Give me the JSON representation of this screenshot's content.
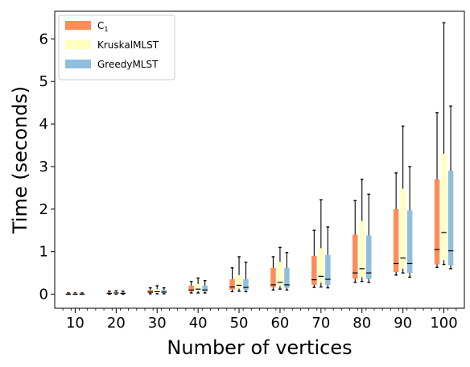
{
  "chart_data": {
    "type": "box",
    "xlabel": "Number of vertices",
    "ylabel": "Time (seconds)",
    "ylim": [
      -0.33,
      6.65
    ],
    "yticks": [
      0,
      1,
      2,
      3,
      4,
      5,
      6
    ],
    "categories": [
      "10",
      "20",
      "30",
      "40",
      "50",
      "60",
      "70",
      "80",
      "90",
      "100"
    ],
    "legend": {
      "position": "top-left",
      "entries": [
        {
          "label": "C",
          "subscript": "1"
        },
        {
          "label": "KruskalMLST",
          "subscript": ""
        },
        {
          "label": "GreedyMLST",
          "subscript": ""
        }
      ]
    },
    "series": [
      {
        "name": "C1",
        "color": "#fc8d59",
        "boxes": [
          {
            "min": 0.0,
            "q1": 0.0,
            "median": 0.0,
            "q3": 0.02,
            "max": 0.03
          },
          {
            "min": 0.0,
            "q1": 0.01,
            "median": 0.02,
            "q3": 0.04,
            "max": 0.07
          },
          {
            "min": 0.01,
            "q1": 0.03,
            "median": 0.05,
            "q3": 0.1,
            "max": 0.15
          },
          {
            "min": 0.03,
            "q1": 0.06,
            "median": 0.1,
            "q3": 0.2,
            "max": 0.3
          },
          {
            "min": 0.06,
            "q1": 0.11,
            "median": 0.17,
            "q3": 0.35,
            "max": 0.62
          },
          {
            "min": 0.1,
            "q1": 0.16,
            "median": 0.22,
            "q3": 0.62,
            "max": 0.88
          },
          {
            "min": 0.16,
            "q1": 0.22,
            "median": 0.34,
            "q3": 0.9,
            "max": 1.5
          },
          {
            "min": 0.28,
            "q1": 0.36,
            "median": 0.5,
            "q3": 1.4,
            "max": 2.2
          },
          {
            "min": 0.45,
            "q1": 0.52,
            "median": 0.72,
            "q3": 2.0,
            "max": 2.85
          },
          {
            "min": 0.63,
            "q1": 0.7,
            "median": 1.05,
            "q3": 2.7,
            "max": 4.27
          }
        ]
      },
      {
        "name": "KruskalMLST",
        "color": "#ffffbf",
        "boxes": [
          {
            "min": 0.0,
            "q1": 0.0,
            "median": 0.0,
            "q3": 0.02,
            "max": 0.03
          },
          {
            "min": 0.0,
            "q1": 0.01,
            "median": 0.03,
            "q3": 0.05,
            "max": 0.08
          },
          {
            "min": 0.01,
            "q1": 0.03,
            "median": 0.06,
            "q3": 0.12,
            "max": 0.2
          },
          {
            "min": 0.03,
            "q1": 0.07,
            "median": 0.12,
            "q3": 0.24,
            "max": 0.38
          },
          {
            "min": 0.07,
            "q1": 0.13,
            "median": 0.21,
            "q3": 0.45,
            "max": 0.88
          },
          {
            "min": 0.12,
            "q1": 0.19,
            "median": 0.28,
            "q3": 0.76,
            "max": 1.1
          },
          {
            "min": 0.17,
            "q1": 0.27,
            "median": 0.42,
            "q3": 1.08,
            "max": 2.22
          },
          {
            "min": 0.3,
            "q1": 0.4,
            "median": 0.6,
            "q3": 1.72,
            "max": 2.7
          },
          {
            "min": 0.5,
            "q1": 0.6,
            "median": 0.85,
            "q3": 2.48,
            "max": 3.95
          },
          {
            "min": 0.7,
            "q1": 0.8,
            "median": 1.45,
            "q3": 3.3,
            "max": 6.38
          }
        ]
      },
      {
        "name": "GreedyMLST",
        "color": "#91bfdb",
        "boxes": [
          {
            "min": 0.0,
            "q1": 0.0,
            "median": 0.0,
            "q3": 0.02,
            "max": 0.03
          },
          {
            "min": 0.0,
            "q1": 0.01,
            "median": 0.02,
            "q3": 0.04,
            "max": 0.07
          },
          {
            "min": 0.01,
            "q1": 0.03,
            "median": 0.05,
            "q3": 0.1,
            "max": 0.15
          },
          {
            "min": 0.03,
            "q1": 0.06,
            "median": 0.1,
            "q3": 0.2,
            "max": 0.32
          },
          {
            "min": 0.06,
            "q1": 0.1,
            "median": 0.16,
            "q3": 0.35,
            "max": 0.75
          },
          {
            "min": 0.1,
            "q1": 0.15,
            "median": 0.22,
            "q3": 0.62,
            "max": 0.98
          },
          {
            "min": 0.15,
            "q1": 0.22,
            "median": 0.35,
            "q3": 0.92,
            "max": 1.58
          },
          {
            "min": 0.28,
            "q1": 0.36,
            "median": 0.5,
            "q3": 1.38,
            "max": 2.35
          },
          {
            "min": 0.4,
            "q1": 0.5,
            "median": 0.72,
            "q3": 1.97,
            "max": 3.0
          },
          {
            "min": 0.6,
            "q1": 0.68,
            "median": 1.02,
            "q3": 2.9,
            "max": 4.42
          }
        ]
      }
    ]
  }
}
